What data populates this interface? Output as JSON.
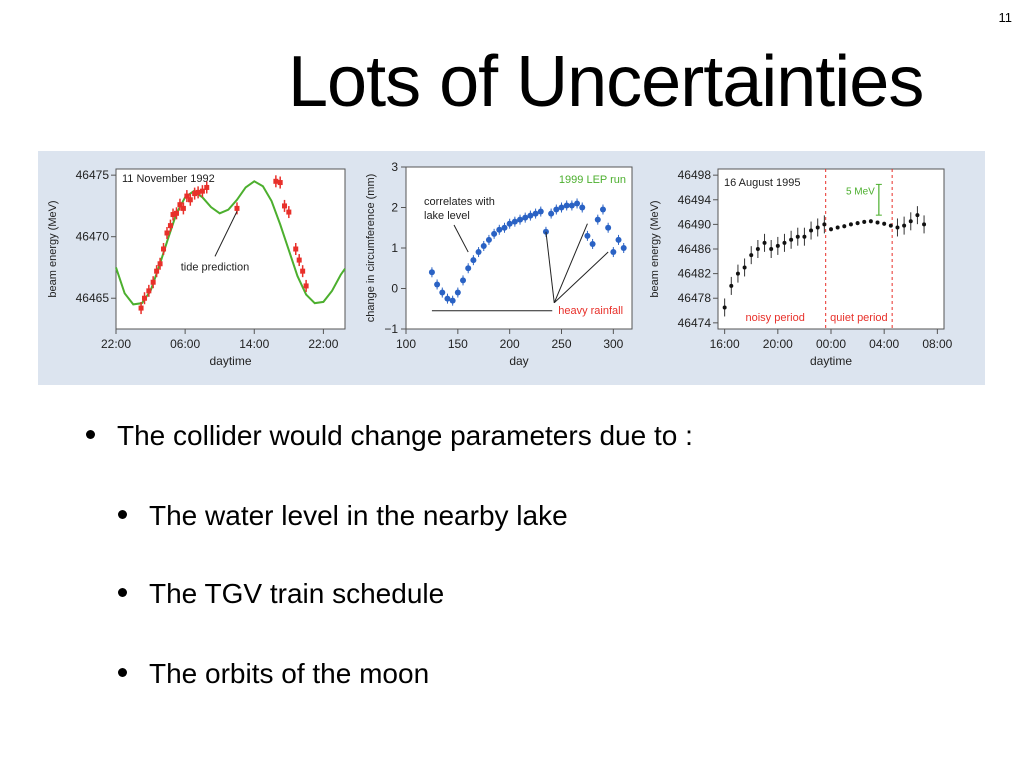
{
  "slide": {
    "page_number": "11",
    "title": "Lots of Uncertainties"
  },
  "bullets": [
    "The collider would change parameters due to :",
    "The water level in the nearby lake",
    "The TGV train schedule",
    "The orbits of the moon"
  ],
  "colors": {
    "panel_bg": "#dce4ef",
    "tide_curve": "#4caf2e",
    "red_points": "#e8302a",
    "blue_points": "#2a62c4",
    "run_label": "#4caf2e",
    "period_line": "#e8302a"
  },
  "chart_data": [
    {
      "type": "scatter",
      "annotation_title": "11 November 1992",
      "xlabel": "daytime",
      "ylabel": "beam energy (MeV)",
      "x_ticks": [
        "22:00",
        "06:00",
        "14:00",
        "22:00"
      ],
      "x_tick_hours": [
        0,
        8,
        16,
        24
      ],
      "y_ticks": [
        46475,
        46470,
        46465
      ],
      "xlim": [
        0,
        26.5
      ],
      "ylim": [
        46462.5,
        46475.5
      ],
      "annotation": "tide prediction",
      "curve": {
        "name": "tide prediction",
        "x": [
          0,
          1,
          2,
          3,
          4,
          5,
          6,
          7,
          8,
          9,
          10,
          11,
          12,
          13,
          14,
          15,
          16,
          17,
          18,
          19,
          20,
          21,
          22,
          23,
          24,
          25,
          26,
          26.5
        ],
        "y": [
          46467.5,
          46465.4,
          46464.5,
          46464.6,
          46465.6,
          46467.6,
          46469.8,
          46471.9,
          46473.2,
          46473.7,
          46473.2,
          46472.4,
          46471.9,
          46472.2,
          46473.0,
          46474.0,
          46474.5,
          46474.1,
          46472.9,
          46471.0,
          46468.9,
          46466.8,
          46465.3,
          46464.6,
          46464.7,
          46465.6,
          46466.9,
          46467.4
        ]
      },
      "points": {
        "x": [
          2.9,
          3.3,
          3.8,
          4.3,
          4.7,
          5.1,
          5.5,
          5.9,
          6.3,
          6.6,
          7.0,
          7.4,
          7.8,
          8.2,
          8.6,
          9.1,
          9.5,
          10.0,
          10.5,
          14.0,
          18.5,
          19.0,
          19.5,
          20.0,
          20.8,
          21.2,
          21.6,
          22.0
        ],
        "y": [
          46464.2,
          46465.0,
          46465.6,
          46466.3,
          46467.2,
          46467.8,
          46469.0,
          46470.3,
          46470.9,
          46471.8,
          46471.9,
          46472.6,
          46472.3,
          46473.3,
          46473.0,
          46473.5,
          46473.6,
          46473.7,
          46474.0,
          46472.3,
          46474.5,
          46474.4,
          46472.5,
          46472.0,
          46469.0,
          46468.1,
          46467.2,
          46466.0
        ]
      }
    },
    {
      "type": "scatter",
      "xlabel": "day",
      "ylabel": "change in circumference (mm)",
      "run_label": "1999 LEP run",
      "x_ticks": [
        100,
        150,
        200,
        250,
        300
      ],
      "y_ticks": [
        -1,
        0,
        1,
        2,
        3
      ],
      "xlim": [
        100,
        318
      ],
      "ylim": [
        -1,
        3
      ],
      "annotations": [
        "correlates with lake level",
        "heavy rainfall"
      ],
      "points": {
        "x": [
          125,
          130,
          135,
          140,
          145,
          150,
          155,
          160,
          165,
          170,
          175,
          180,
          185,
          190,
          195,
          200,
          205,
          210,
          215,
          220,
          225,
          230,
          235,
          240,
          245,
          250,
          255,
          260,
          265,
          270,
          275,
          280,
          285,
          290,
          295,
          300,
          305,
          310
        ],
        "y": [
          0.4,
          0.1,
          -0.1,
          -0.25,
          -0.3,
          -0.1,
          0.2,
          0.5,
          0.7,
          0.9,
          1.05,
          1.2,
          1.35,
          1.45,
          1.5,
          1.6,
          1.65,
          1.7,
          1.75,
          1.8,
          1.85,
          1.9,
          1.4,
          1.85,
          1.95,
          2.0,
          2.05,
          2.05,
          2.1,
          2.0,
          1.3,
          1.1,
          1.7,
          1.95,
          1.5,
          0.9,
          1.2,
          1.0
        ]
      }
    },
    {
      "type": "scatter",
      "annotation_title": "16 August 1995",
      "xlabel": "daytime",
      "ylabel": "beam energy (MeV)",
      "x_ticks": [
        "16:00",
        "20:00",
        "00:00",
        "04:00",
        "08:00"
      ],
      "x_tick_hours": [
        0,
        4,
        8,
        12,
        16
      ],
      "y_ticks": [
        46498,
        46494,
        46490,
        46486,
        46482,
        46478,
        46474
      ],
      "xlim": [
        -0.5,
        16.5
      ],
      "ylim": [
        46473,
        46499
      ],
      "scale_bar_label": "5 MeV",
      "regions": [
        "noisy period",
        "quiet period"
      ],
      "period_boundaries_hours": [
        7.6,
        12.6
      ],
      "points": {
        "x": [
          0,
          0.5,
          1,
          1.5,
          2,
          2.5,
          3,
          3.5,
          4,
          4.5,
          5,
          5.5,
          6,
          6.5,
          7,
          7.5,
          8,
          8.5,
          9,
          9.5,
          10,
          10.5,
          11,
          11.5,
          12,
          12.5,
          13,
          13.5,
          14,
          14.5,
          15
        ],
        "y": [
          46476.5,
          46480,
          46482,
          46483,
          46485,
          46486,
          46487,
          46486,
          46486.5,
          46487,
          46487.5,
          46488,
          46488,
          46489,
          46489.5,
          46490,
          46489.2,
          46489.5,
          46489.7,
          46490,
          46490.2,
          46490.4,
          46490.5,
          46490.3,
          46490.1,
          46489.8,
          46489.5,
          46489.8,
          46490.5,
          46491.5,
          46490
        ]
      }
    }
  ]
}
